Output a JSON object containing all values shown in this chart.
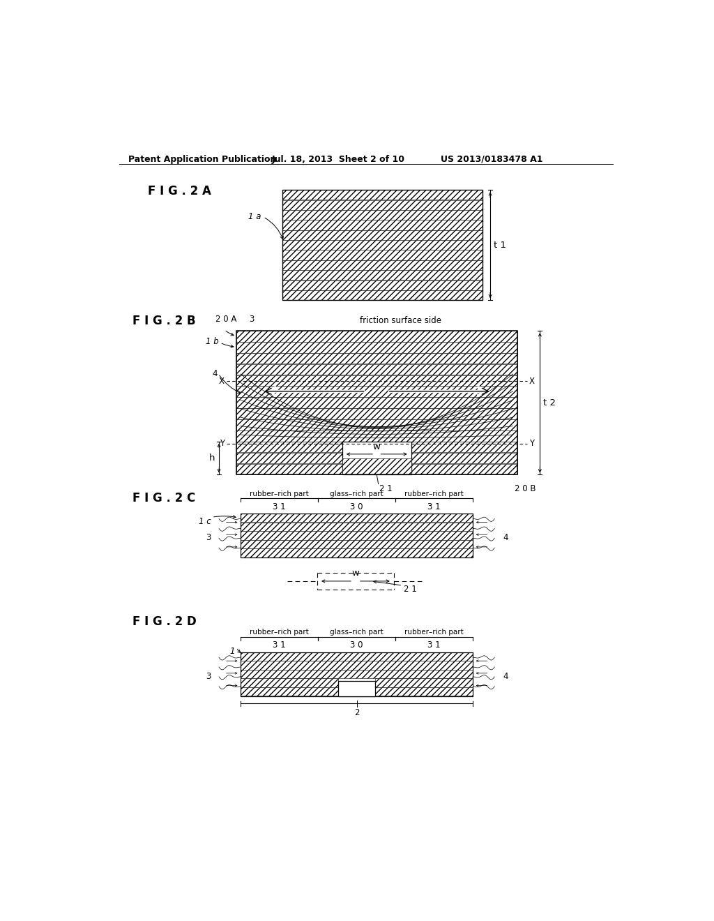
{
  "header_left": "Patent Application Publication",
  "header_mid": "Jul. 18, 2013  Sheet 2 of 10",
  "header_right": "US 2013/0183478 A1",
  "fig2a_label": "F I G . 2 A",
  "fig2b_label": "F I G . 2 B",
  "fig2c_label": "F I G . 2 C",
  "fig2d_label": "F I G . 2 D",
  "bg_color": "#ffffff"
}
